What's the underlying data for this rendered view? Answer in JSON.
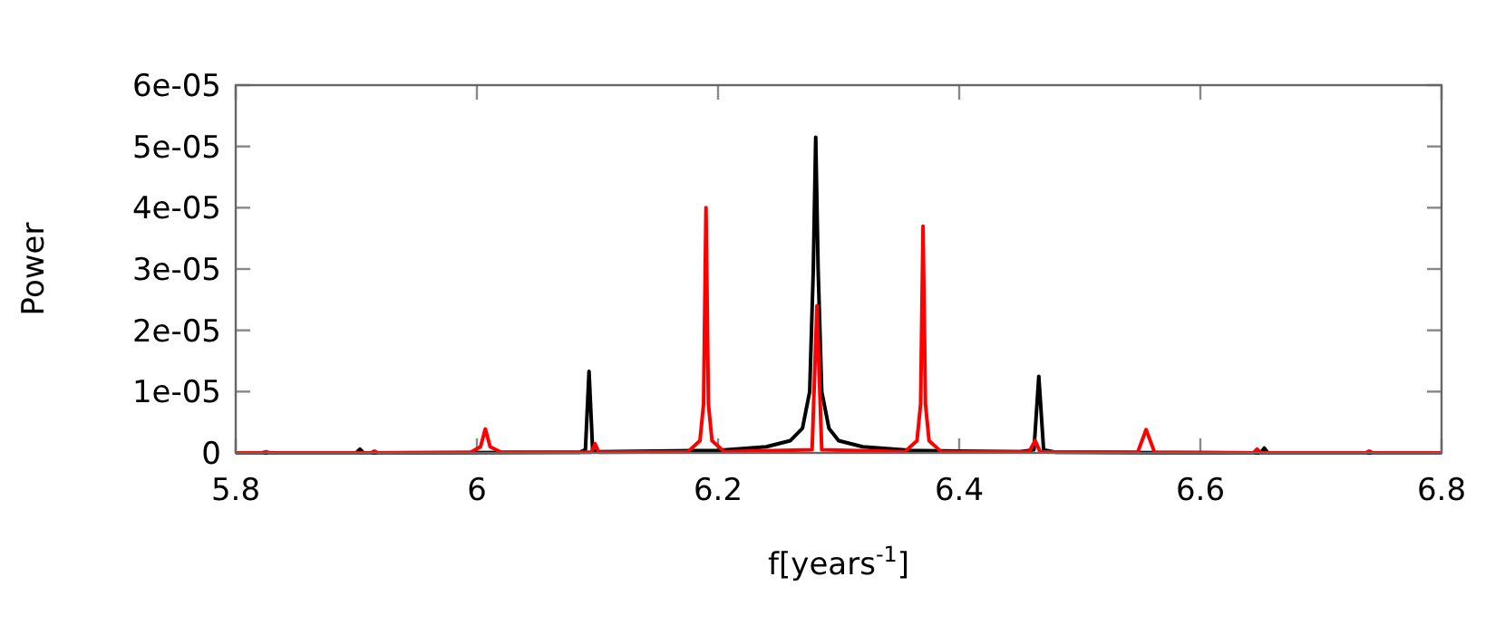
{
  "chart_data": {
    "type": "line",
    "xlabel": "f[years$^{-1}$]",
    "ylabel": "Power",
    "xlim": [
      5.8,
      6.8
    ],
    "xticks": [
      5.8,
      6,
      6.2,
      6.4,
      6.6,
      6.8
    ],
    "ylim": [
      0,
      6e-05
    ],
    "yticks": [
      0,
      {
        "value": 1e-05,
        "label": "1e-05"
      },
      {
        "value": 2e-05,
        "label": "2e-05"
      },
      {
        "value": 3e-05,
        "label": "3e-05"
      },
      {
        "value": 4e-05,
        "label": "4e-05"
      },
      {
        "value": 5e-05,
        "label": "5e-05"
      },
      {
        "value": 6e-05,
        "label": "6e-05"
      }
    ],
    "grid": false,
    "marker": "none",
    "line_style": "solid",
    "series": [
      {
        "color": "#000000",
        "x": [
          5.8,
          5.9,
          5.903,
          5.906,
          6.085,
          6.09,
          6.093,
          6.096,
          6.1,
          6.2,
          6.24,
          6.26,
          6.27,
          6.276,
          6.279,
          6.281,
          6.283,
          6.286,
          6.292,
          6.3,
          6.32,
          6.36,
          6.45,
          6.462,
          6.466,
          6.47,
          6.48,
          6.65,
          6.653,
          6.656,
          6.8
        ],
        "values": [
          0,
          0,
          6e-07,
          0,
          1e-07,
          5e-07,
          1.33e-05,
          5e-07,
          2e-07,
          4e-07,
          1e-06,
          2e-06,
          4e-06,
          1e-05,
          3e-05,
          5.15e-05,
          3e-05,
          1e-05,
          4e-06,
          2e-06,
          1e-06,
          4e-07,
          2e-07,
          5e-07,
          1.25e-05,
          5e-07,
          1e-07,
          0,
          8e-07,
          0,
          0
        ]
      },
      {
        "color": "#ff0000",
        "x": [
          5.8,
          5.822,
          5.825,
          5.828,
          5.912,
          5.915,
          5.918,
          5.995,
          6.003,
          6.007,
          6.011,
          6.02,
          6.095,
          6.098,
          6.101,
          6.175,
          6.185,
          6.188,
          6.19,
          6.192,
          6.195,
          6.205,
          6.278,
          6.282,
          6.286,
          6.355,
          6.365,
          6.368,
          6.37,
          6.372,
          6.375,
          6.385,
          6.458,
          6.463,
          6.467,
          6.548,
          6.555,
          6.562,
          6.644,
          6.647,
          6.65,
          6.737,
          6.74,
          6.743,
          6.8
        ],
        "values": [
          0,
          0,
          2e-07,
          0,
          0,
          3e-07,
          0,
          1e-07,
          1e-06,
          3.9e-06,
          1e-06,
          1e-07,
          1e-07,
          1.5e-06,
          1e-07,
          2e-07,
          2e-06,
          8e-06,
          4e-05,
          8e-06,
          2e-06,
          2e-07,
          5e-07,
          2.4e-05,
          5e-07,
          2e-07,
          2e-06,
          8e-06,
          3.7e-05,
          8e-06,
          2e-06,
          2e-07,
          2e-07,
          2e-06,
          2e-07,
          1e-07,
          3.8e-06,
          1e-07,
          0,
          6e-07,
          0,
          0,
          3e-07,
          0,
          0
        ]
      }
    ]
  }
}
